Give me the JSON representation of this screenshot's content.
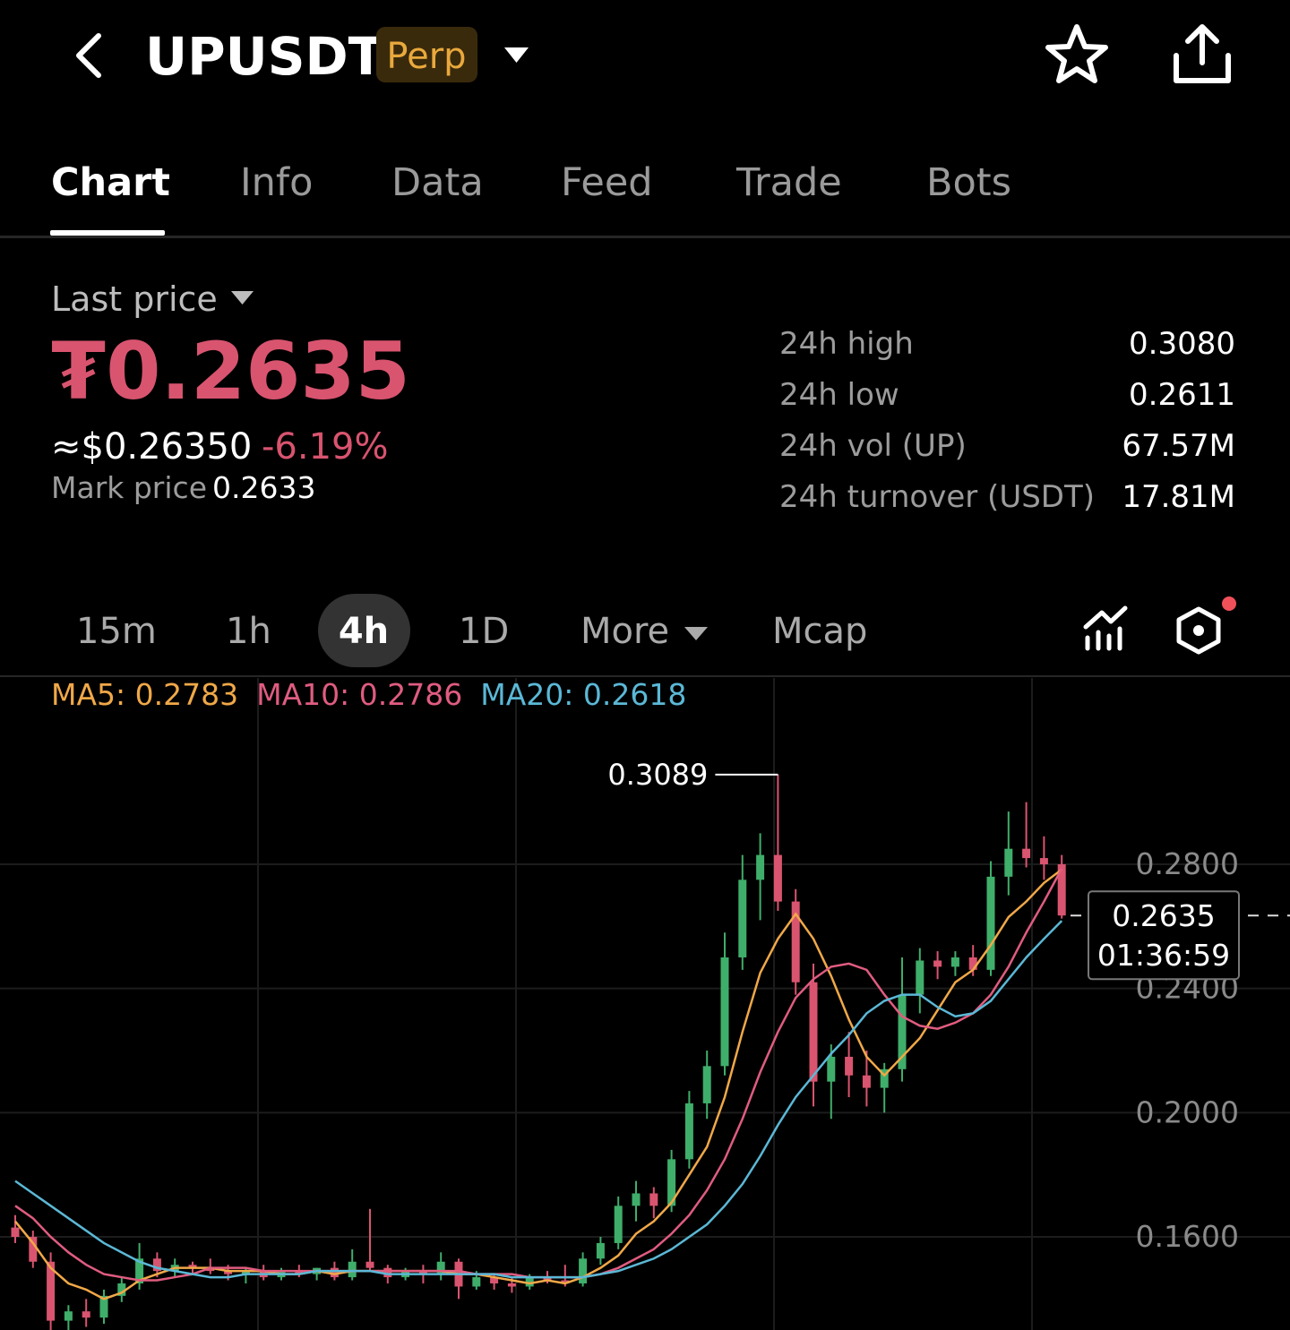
{
  "header": {
    "symbol": "UPUSDT",
    "badge": "Perp"
  },
  "tabs": [
    "Chart",
    "Info",
    "Data",
    "Feed",
    "Trade",
    "Bots"
  ],
  "price": {
    "label": "Last price",
    "last": "₮0.2635",
    "usd": "≈$0.26350",
    "change": "-6.19%",
    "mark_label": "Mark price",
    "mark": "0.2633"
  },
  "stats": [
    [
      "24h high",
      "0.3080"
    ],
    [
      "24h low",
      "0.2611"
    ],
    [
      "24h vol (UP)",
      "67.57M"
    ],
    [
      "24h turnover (USDT)",
      "17.81M"
    ]
  ],
  "timeframes": [
    "15m",
    "1h",
    "4h",
    "1D",
    "More",
    "Mcap"
  ],
  "chart_data": {
    "type": "candlestick",
    "up_color": "#3fae6a",
    "down_color": "#d9546f",
    "ylim": [
      0.13,
      0.34
    ],
    "yticks": [
      {
        "value": 0.16,
        "label": "0.1600"
      },
      {
        "value": 0.2,
        "label": "0.2000"
      },
      {
        "value": 0.24,
        "label": "0.2400"
      },
      {
        "value": 0.28,
        "label": "0.2800"
      }
    ],
    "grid": true,
    "ohlc": [
      [
        0.163,
        0.167,
        0.158,
        0.16
      ],
      [
        0.16,
        0.162,
        0.15,
        0.152
      ],
      [
        0.152,
        0.155,
        0.13,
        0.133
      ],
      [
        0.133,
        0.138,
        0.13,
        0.136
      ],
      [
        0.136,
        0.14,
        0.131,
        0.134
      ],
      [
        0.134,
        0.143,
        0.132,
        0.141
      ],
      [
        0.141,
        0.147,
        0.139,
        0.145
      ],
      [
        0.145,
        0.158,
        0.143,
        0.153
      ],
      [
        0.153,
        0.155,
        0.147,
        0.149
      ],
      [
        0.149,
        0.153,
        0.147,
        0.151
      ],
      [
        0.151,
        0.152,
        0.148,
        0.15
      ],
      [
        0.15,
        0.153,
        0.148,
        0.149
      ],
      [
        0.149,
        0.151,
        0.146,
        0.148
      ],
      [
        0.148,
        0.15,
        0.145,
        0.149
      ],
      [
        0.149,
        0.151,
        0.146,
        0.147
      ],
      [
        0.147,
        0.15,
        0.146,
        0.149
      ],
      [
        0.149,
        0.151,
        0.147,
        0.148
      ],
      [
        0.148,
        0.15,
        0.146,
        0.15
      ],
      [
        0.15,
        0.152,
        0.146,
        0.147
      ],
      [
        0.147,
        0.156,
        0.146,
        0.152
      ],
      [
        0.152,
        0.169,
        0.149,
        0.15
      ],
      [
        0.15,
        0.151,
        0.145,
        0.147
      ],
      [
        0.147,
        0.15,
        0.146,
        0.149
      ],
      [
        0.149,
        0.151,
        0.145,
        0.148
      ],
      [
        0.148,
        0.155,
        0.146,
        0.152
      ],
      [
        0.152,
        0.153,
        0.14,
        0.144
      ],
      [
        0.144,
        0.149,
        0.143,
        0.147
      ],
      [
        0.147,
        0.148,
        0.143,
        0.145
      ],
      [
        0.145,
        0.147,
        0.142,
        0.144
      ],
      [
        0.144,
        0.148,
        0.143,
        0.147
      ],
      [
        0.147,
        0.149,
        0.145,
        0.146
      ],
      [
        0.146,
        0.151,
        0.144,
        0.145
      ],
      [
        0.145,
        0.155,
        0.144,
        0.153
      ],
      [
        0.153,
        0.16,
        0.151,
        0.158
      ],
      [
        0.158,
        0.173,
        0.156,
        0.17
      ],
      [
        0.17,
        0.178,
        0.165,
        0.174
      ],
      [
        0.174,
        0.176,
        0.166,
        0.17
      ],
      [
        0.17,
        0.188,
        0.168,
        0.185
      ],
      [
        0.185,
        0.207,
        0.182,
        0.203
      ],
      [
        0.203,
        0.22,
        0.198,
        0.215
      ],
      [
        0.215,
        0.258,
        0.212,
        0.25
      ],
      [
        0.25,
        0.283,
        0.246,
        0.275
      ],
      [
        0.275,
        0.29,
        0.262,
        0.283
      ],
      [
        0.283,
        0.3089,
        0.265,
        0.268
      ],
      [
        0.268,
        0.272,
        0.238,
        0.242
      ],
      [
        0.242,
        0.248,
        0.202,
        0.21
      ],
      [
        0.21,
        0.222,
        0.198,
        0.218
      ],
      [
        0.218,
        0.226,
        0.205,
        0.212
      ],
      [
        0.212,
        0.22,
        0.202,
        0.208
      ],
      [
        0.208,
        0.216,
        0.2,
        0.214
      ],
      [
        0.214,
        0.25,
        0.21,
        0.238
      ],
      [
        0.238,
        0.253,
        0.232,
        0.249
      ],
      [
        0.249,
        0.252,
        0.243,
        0.247
      ],
      [
        0.247,
        0.252,
        0.244,
        0.25
      ],
      [
        0.25,
        0.254,
        0.244,
        0.246
      ],
      [
        0.246,
        0.281,
        0.244,
        0.276
      ],
      [
        0.276,
        0.297,
        0.27,
        0.285
      ],
      [
        0.285,
        0.3,
        0.279,
        0.282
      ],
      [
        0.282,
        0.289,
        0.275,
        0.28
      ],
      [
        0.28,
        0.283,
        0.2625,
        0.2635
      ]
    ],
    "series": [
      {
        "label": "MA5: 0.2783",
        "color": "#f0a848",
        "values": [
          0.165,
          0.158,
          0.15,
          0.145,
          0.143,
          0.14,
          0.142,
          0.146,
          0.148,
          0.15,
          0.15,
          0.15,
          0.149,
          0.149,
          0.149,
          0.148,
          0.148,
          0.149,
          0.148,
          0.149,
          0.149,
          0.149,
          0.149,
          0.149,
          0.149,
          0.148,
          0.148,
          0.147,
          0.146,
          0.145,
          0.146,
          0.145,
          0.147,
          0.15,
          0.154,
          0.161,
          0.165,
          0.171,
          0.18,
          0.189,
          0.205,
          0.226,
          0.245,
          0.256,
          0.264,
          0.256,
          0.244,
          0.23,
          0.218,
          0.212,
          0.218,
          0.224,
          0.233,
          0.242,
          0.246,
          0.254,
          0.263,
          0.268,
          0.274,
          0.2783
        ]
      },
      {
        "label": "MA10: 0.2786",
        "color": "#e05c80",
        "values": [
          0.17,
          0.166,
          0.16,
          0.155,
          0.151,
          0.148,
          0.147,
          0.146,
          0.146,
          0.147,
          0.148,
          0.15,
          0.15,
          0.15,
          0.149,
          0.149,
          0.149,
          0.149,
          0.149,
          0.149,
          0.149,
          0.149,
          0.149,
          0.149,
          0.149,
          0.149,
          0.148,
          0.148,
          0.148,
          0.147,
          0.147,
          0.147,
          0.147,
          0.148,
          0.15,
          0.153,
          0.156,
          0.161,
          0.167,
          0.175,
          0.185,
          0.198,
          0.213,
          0.226,
          0.237,
          0.243,
          0.247,
          0.248,
          0.246,
          0.238,
          0.231,
          0.228,
          0.227,
          0.229,
          0.232,
          0.238,
          0.247,
          0.258,
          0.268,
          0.2786
        ]
      },
      {
        "label": "MA20: 0.2618",
        "color": "#5bb8d6",
        "values": [
          0.178,
          0.174,
          0.17,
          0.166,
          0.162,
          0.158,
          0.155,
          0.152,
          0.15,
          0.149,
          0.148,
          0.147,
          0.147,
          0.148,
          0.148,
          0.148,
          0.148,
          0.149,
          0.149,
          0.149,
          0.149,
          0.148,
          0.148,
          0.148,
          0.148,
          0.148,
          0.148,
          0.148,
          0.147,
          0.147,
          0.147,
          0.147,
          0.147,
          0.148,
          0.149,
          0.151,
          0.153,
          0.156,
          0.16,
          0.164,
          0.17,
          0.177,
          0.186,
          0.196,
          0.205,
          0.212,
          0.219,
          0.225,
          0.232,
          0.236,
          0.238,
          0.238,
          0.234,
          0.231,
          0.232,
          0.236,
          0.243,
          0.25,
          0.256,
          0.2618
        ]
      }
    ],
    "max_label": 0.3089,
    "last_value": 0.2635,
    "countdown": "01:36:59"
  }
}
